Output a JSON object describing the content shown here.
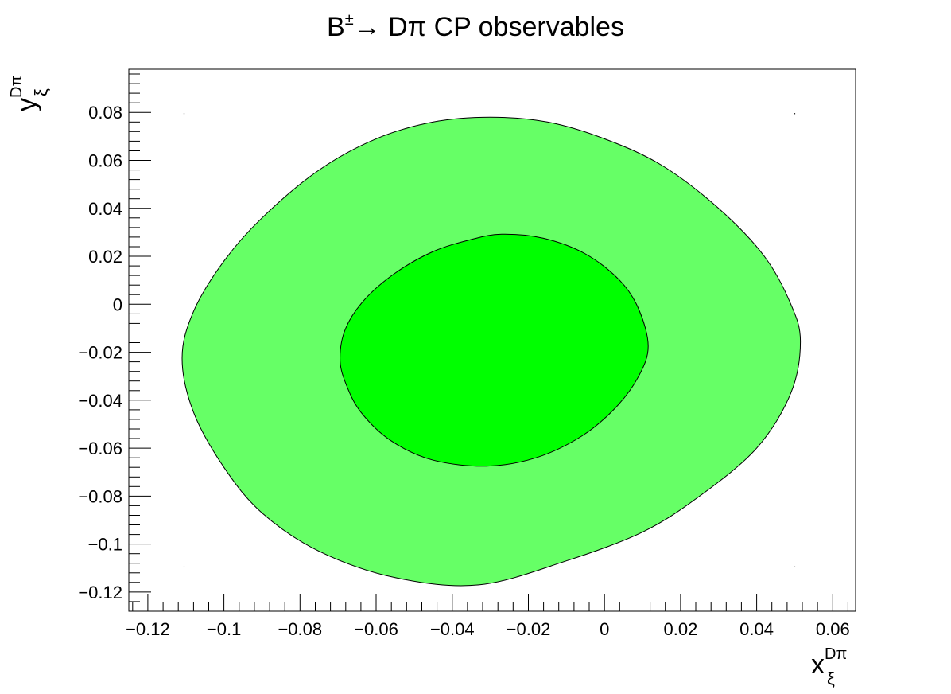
{
  "chart_data": {
    "type": "contour",
    "title": {
      "prefix": "B",
      "sup": "±",
      "suffix": "→ Dπ CP observables"
    },
    "xlabel": {
      "base": "x",
      "sup": "Dπ",
      "sub": "ξ"
    },
    "ylabel": {
      "base": "y",
      "sup": "Dπ",
      "sub": "ξ"
    },
    "xlim": [
      -0.125,
      0.066
    ],
    "ylim": [
      -0.128,
      0.098
    ],
    "x_ticks": [
      {
        "value": -0.12,
        "label": "−0.12"
      },
      {
        "value": -0.1,
        "label": "−0.1"
      },
      {
        "value": -0.08,
        "label": "−0.08"
      },
      {
        "value": -0.06,
        "label": "−0.06"
      },
      {
        "value": -0.04,
        "label": "−0.04"
      },
      {
        "value": -0.02,
        "label": "−0.02"
      },
      {
        "value": 0,
        "label": "0"
      },
      {
        "value": 0.02,
        "label": "0.02"
      },
      {
        "value": 0.04,
        "label": "0.04"
      },
      {
        "value": 0.06,
        "label": "0.06"
      }
    ],
    "y_ticks": [
      {
        "value": 0.08,
        "label": "0.08"
      },
      {
        "value": 0.06,
        "label": "0.06"
      },
      {
        "value": 0.04,
        "label": "0.04"
      },
      {
        "value": 0.02,
        "label": "0.02"
      },
      {
        "value": 0,
        "label": "0"
      },
      {
        "value": -0.02,
        "label": "−0.02"
      },
      {
        "value": -0.04,
        "label": "−0.04"
      },
      {
        "value": -0.06,
        "label": "−0.06"
      },
      {
        "value": -0.08,
        "label": "−0.08"
      },
      {
        "value": -0.1,
        "label": "−0.1"
      },
      {
        "value": -0.12,
        "label": "−0.12"
      }
    ],
    "regions": [
      {
        "level": "outer",
        "color": "#66ff66",
        "boundary": [
          [
            -0.111,
            -0.0225
          ],
          [
            -0.108,
            -0.003
          ],
          [
            -0.1,
            0.018
          ],
          [
            -0.09,
            0.036
          ],
          [
            -0.075,
            0.056
          ],
          [
            -0.06,
            0.069
          ],
          [
            -0.045,
            0.076
          ],
          [
            -0.03,
            0.078
          ],
          [
            -0.015,
            0.076
          ],
          [
            0.0,
            0.069
          ],
          [
            0.015,
            0.058
          ],
          [
            0.03,
            0.04
          ],
          [
            0.042,
            0.02
          ],
          [
            0.049,
            0.0
          ],
          [
            0.0515,
            -0.0155
          ],
          [
            0.049,
            -0.037
          ],
          [
            0.04,
            -0.06
          ],
          [
            0.025,
            -0.08
          ],
          [
            0.01,
            -0.095
          ],
          [
            -0.01,
            -0.107
          ],
          [
            -0.033,
            -0.117
          ],
          [
            -0.055,
            -0.114
          ],
          [
            -0.075,
            -0.103
          ],
          [
            -0.09,
            -0.087
          ],
          [
            -0.1,
            -0.068
          ],
          [
            -0.108,
            -0.045
          ]
        ]
      },
      {
        "level": "inner",
        "color": "#00ff00",
        "boundary": [
          [
            -0.0695,
            -0.0225
          ],
          [
            -0.068,
            -0.01
          ],
          [
            -0.063,
            0.002
          ],
          [
            -0.055,
            0.013
          ],
          [
            -0.045,
            0.022
          ],
          [
            -0.035,
            0.027
          ],
          [
            -0.027,
            0.0292
          ],
          [
            -0.016,
            0.0275
          ],
          [
            -0.005,
            0.021
          ],
          [
            0.004,
            0.01
          ],
          [
            0.009,
            -0.002
          ],
          [
            0.0115,
            -0.0175
          ],
          [
            0.009,
            -0.03
          ],
          [
            0.003,
            -0.043
          ],
          [
            -0.006,
            -0.055
          ],
          [
            -0.018,
            -0.064
          ],
          [
            -0.031,
            -0.0675
          ],
          [
            -0.045,
            -0.065
          ],
          [
            -0.056,
            -0.057
          ],
          [
            -0.064,
            -0.045
          ],
          [
            -0.068,
            -0.033
          ]
        ]
      }
    ],
    "corner_markers": [
      [
        -0.1105,
        0.0795
      ],
      [
        0.05,
        0.0795
      ],
      [
        -0.1105,
        -0.1095
      ],
      [
        0.05,
        -0.1095
      ]
    ],
    "colors": {
      "outer": "#66ff66",
      "inner": "#00ff00",
      "axes": "#000000",
      "background": "#ffffff"
    },
    "grid": false,
    "legend": "none"
  }
}
